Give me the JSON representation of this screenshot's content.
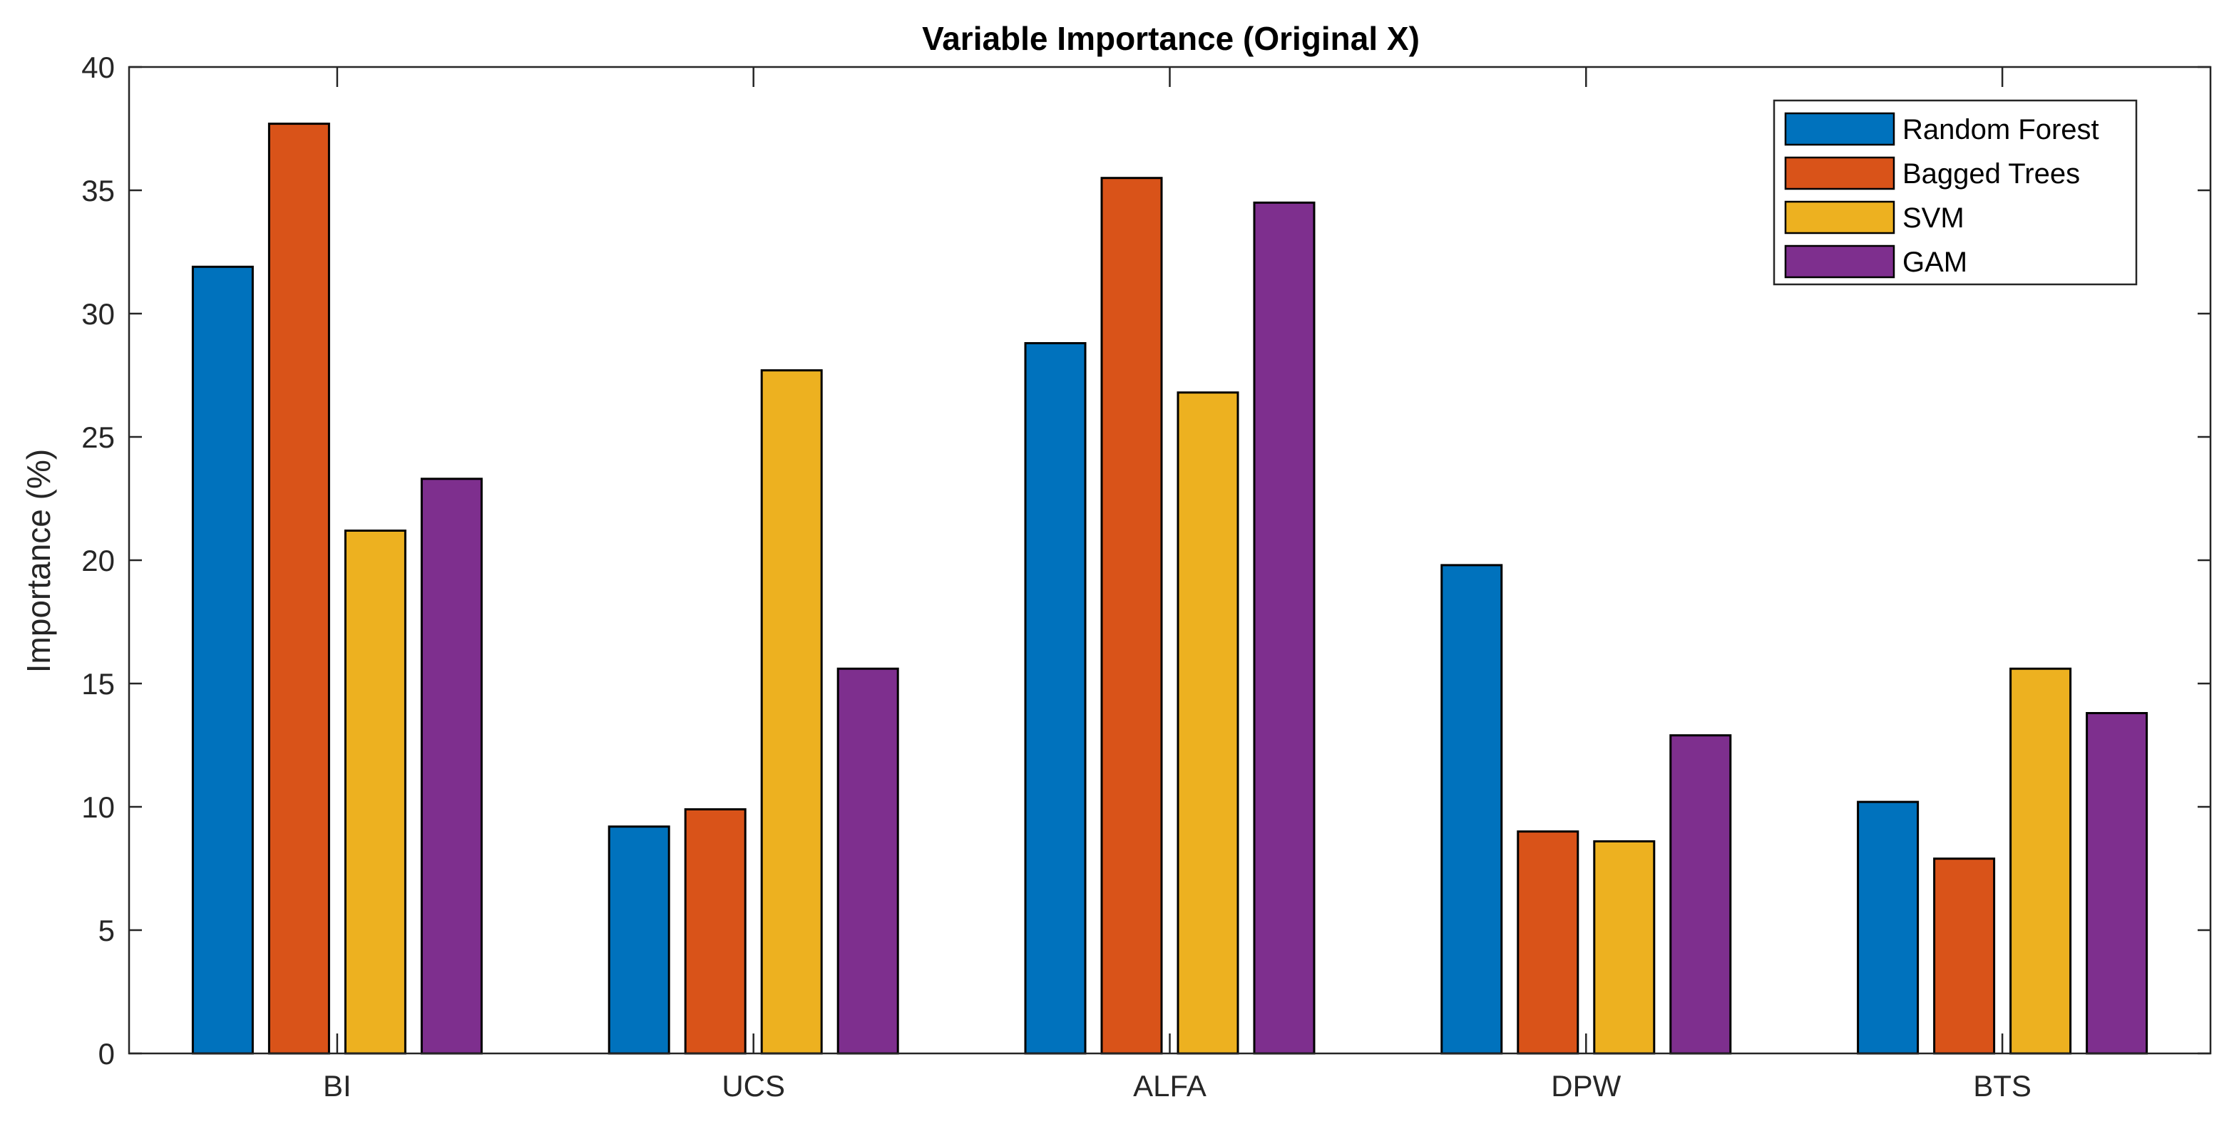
{
  "chart_data": {
    "type": "bar",
    "title": "Variable Importance (Original X)",
    "xlabel": "",
    "ylabel": "Importance (%)",
    "ylim": [
      0,
      40
    ],
    "yticks": [
      0,
      5,
      10,
      15,
      20,
      25,
      30,
      35,
      40
    ],
    "categories": [
      "BI",
      "UCS",
      "ALFA",
      "DPW",
      "BTS"
    ],
    "series": [
      {
        "name": "Random Forest",
        "color": "#0072BD",
        "values": [
          31.9,
          9.2,
          28.8,
          19.8,
          10.2
        ]
      },
      {
        "name": "Bagged Trees",
        "color": "#D95319",
        "values": [
          37.7,
          9.9,
          35.5,
          9.0,
          7.9
        ]
      },
      {
        "name": "SVM",
        "color": "#EDB120",
        "values": [
          21.2,
          27.7,
          26.8,
          8.6,
          15.6
        ]
      },
      {
        "name": "GAM",
        "color": "#7E2F8E",
        "values": [
          23.3,
          15.6,
          34.5,
          12.9,
          13.8
        ]
      }
    ],
    "grid": false,
    "legend_position": "top-right"
  }
}
